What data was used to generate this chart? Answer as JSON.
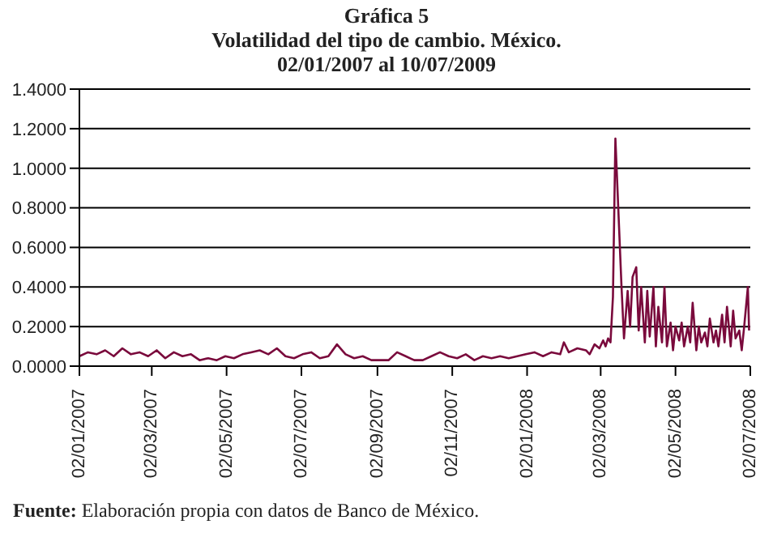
{
  "chart_data": {
    "type": "line",
    "title": "Gráfica 5",
    "subtitle": "Volatilidad del tipo de cambio. México.\n02/01/2007 al 10/07/2009",
    "annotations": [
      "Fuente: Elaboración propia con datos de Banco de México."
    ],
    "x": [
      "2007-01-02",
      "2007-01-09",
      "2007-01-16",
      "2007-01-23",
      "2007-01-30",
      "2007-02-06",
      "2007-02-13",
      "2007-02-20",
      "2007-02-27",
      "2007-03-06",
      "2007-03-13",
      "2007-03-20",
      "2007-03-27",
      "2007-04-03",
      "2007-04-10",
      "2007-04-17",
      "2007-04-24",
      "2007-05-01",
      "2007-05-08",
      "2007-05-15",
      "2007-05-22",
      "2007-05-29",
      "2007-06-05",
      "2007-06-12",
      "2007-06-19",
      "2007-06-26",
      "2007-07-03",
      "2007-07-10",
      "2007-07-17",
      "2007-07-24",
      "2007-07-31",
      "2007-08-07",
      "2007-08-14",
      "2007-08-21",
      "2007-08-28",
      "2007-09-04",
      "2007-09-11",
      "2007-09-18",
      "2007-09-25",
      "2007-10-02",
      "2007-10-09",
      "2007-10-16",
      "2007-10-23",
      "2007-10-30",
      "2007-11-06",
      "2007-11-13",
      "2007-11-20",
      "2007-11-27",
      "2007-12-04",
      "2007-12-11",
      "2007-12-18",
      "2007-12-25",
      "2008-01-01",
      "2008-01-08",
      "2008-01-15",
      "2008-01-22",
      "2008-01-29",
      "2008-02-01",
      "2008-02-05",
      "2008-02-12",
      "2008-02-19",
      "2008-02-22",
      "2008-02-26",
      "2008-03-01",
      "2008-03-04",
      "2008-03-06",
      "2008-03-08",
      "2008-03-10",
      "2008-03-12",
      "2008-03-14",
      "2008-03-17",
      "2008-03-19",
      "2008-03-21",
      "2008-03-24",
      "2008-03-26",
      "2008-03-28",
      "2008-03-31",
      "2008-04-02",
      "2008-04-04",
      "2008-04-07",
      "2008-04-09",
      "2008-04-11",
      "2008-04-14",
      "2008-04-16",
      "2008-04-18",
      "2008-04-21",
      "2008-04-23",
      "2008-04-25",
      "2008-04-28",
      "2008-04-30",
      "2008-05-02",
      "2008-05-05",
      "2008-05-07",
      "2008-05-09",
      "2008-05-12",
      "2008-05-14",
      "2008-05-16",
      "2008-05-19",
      "2008-05-21",
      "2008-05-23",
      "2008-05-26",
      "2008-05-28",
      "2008-05-30",
      "2008-06-02",
      "2008-06-04",
      "2008-06-06",
      "2008-06-09",
      "2008-06-11",
      "2008-06-13",
      "2008-06-16",
      "2008-06-18",
      "2008-06-20",
      "2008-06-23",
      "2008-06-25",
      "2008-06-27",
      "2008-06-30",
      "2008-07-01"
    ],
    "series": [
      {
        "color": "#7a0a3c",
        "values": [
          0.05,
          0.07,
          0.06,
          0.08,
          0.05,
          0.09,
          0.06,
          0.07,
          0.05,
          0.08,
          0.04,
          0.07,
          0.05,
          0.06,
          0.03,
          0.04,
          0.03,
          0.05,
          0.04,
          0.06,
          0.07,
          0.08,
          0.06,
          0.09,
          0.05,
          0.04,
          0.06,
          0.07,
          0.04,
          0.05,
          0.11,
          0.06,
          0.04,
          0.05,
          0.03,
          0.03,
          0.03,
          0.07,
          0.05,
          0.03,
          0.03,
          0.05,
          0.07,
          0.05,
          0.04,
          0.06,
          0.03,
          0.05,
          0.04,
          0.05,
          0.04,
          0.05,
          0.06,
          0.07,
          0.05,
          0.07,
          0.06,
          0.12,
          0.07,
          0.09,
          0.08,
          0.06,
          0.11,
          0.09,
          0.13,
          0.1,
          0.14,
          0.12,
          0.35,
          1.15,
          0.7,
          0.4,
          0.14,
          0.38,
          0.2,
          0.45,
          0.5,
          0.18,
          0.4,
          0.12,
          0.38,
          0.15,
          0.4,
          0.1,
          0.3,
          0.12,
          0.4,
          0.1,
          0.22,
          0.08,
          0.2,
          0.13,
          0.22,
          0.1,
          0.2,
          0.12,
          0.32,
          0.08,
          0.2,
          0.12,
          0.17,
          0.1,
          0.24,
          0.12,
          0.18,
          0.1,
          0.26,
          0.12,
          0.3,
          0.1,
          0.28,
          0.14,
          0.18,
          0.08,
          0.2,
          0.4,
          0.18
        ]
      }
    ],
    "xlim": [
      "2007-01-02",
      "2008-07-02"
    ],
    "xticks": [
      {
        "value": "2007-01-02",
        "label": "02/01/2007"
      },
      {
        "value": "2007-03-02",
        "label": "02/03/2007"
      },
      {
        "value": "2007-05-02",
        "label": "02/05/2007"
      },
      {
        "value": "2007-07-02",
        "label": "02/07/2007"
      },
      {
        "value": "2007-09-02",
        "label": "02/09/2007"
      },
      {
        "value": "2007-11-02",
        "label": "02/11/2007"
      },
      {
        "value": "2008-01-02",
        "label": "02/01/2008"
      },
      {
        "value": "2008-03-02",
        "label": "02/03/2008"
      },
      {
        "value": "2008-05-02",
        "label": "02/05/2008"
      },
      {
        "value": "2008-07-02",
        "label": "02/07/2008"
      }
    ],
    "ylim": [
      0,
      1.4
    ],
    "yticks": [
      {
        "value": 0,
        "label": "0.0000"
      },
      {
        "value": 0.2,
        "label": "0.2000"
      },
      {
        "value": 0.4,
        "label": "0.4000"
      },
      {
        "value": 0.6,
        "label": "0.6000"
      },
      {
        "value": 0.8,
        "label": "0.8000"
      },
      {
        "value": 1,
        "label": "1.0000"
      },
      {
        "value": 1.2,
        "label": "1.2000"
      },
      {
        "value": 1.4,
        "label": "1.4000"
      }
    ],
    "grid": "y",
    "legend": false,
    "marker": "none",
    "line_style": "solid"
  }
}
